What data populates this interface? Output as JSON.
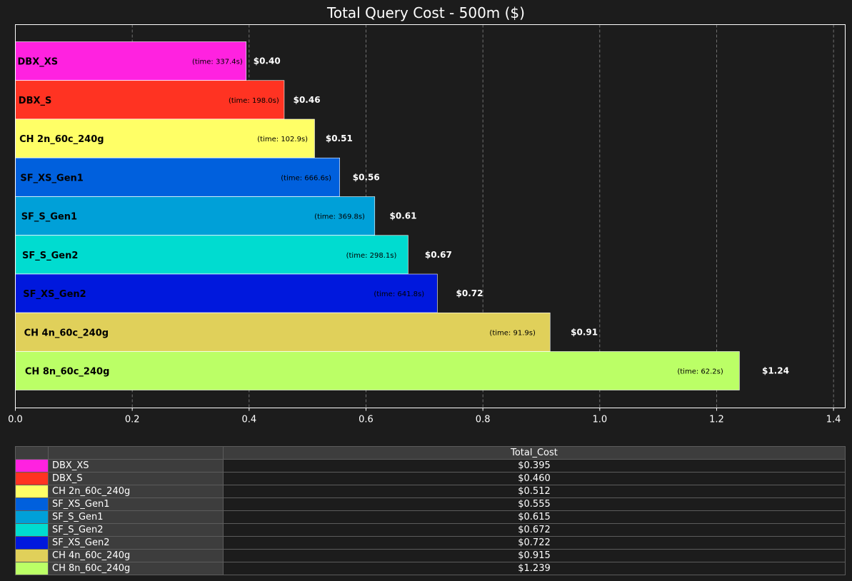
{
  "chart_data": {
    "type": "bar",
    "orientation": "horizontal",
    "title": "Total Query Cost - 500m ($)",
    "xlim": [
      0,
      1.42
    ],
    "x_ticks": [
      "0.0",
      "0.2",
      "0.4",
      "0.6",
      "0.8",
      "1.0",
      "1.2",
      "1.4"
    ],
    "grid": "vertical dashed",
    "categories": [
      "DBX_XS",
      "DBX_S",
      "CH 2n_60c_240g",
      "SF_XS_Gen1",
      "SF_S_Gen1",
      "SF_S_Gen2",
      "SF_XS_Gen2",
      "CH 4n_60c_240g",
      "CH 8n_60c_240g"
    ],
    "values": [
      0.395,
      0.46,
      0.512,
      0.555,
      0.615,
      0.672,
      0.722,
      0.915,
      1.239
    ],
    "value_labels": [
      "$0.40",
      "$0.46",
      "$0.51",
      "$0.56",
      "$0.61",
      "$0.67",
      "$0.72",
      "$0.91",
      "$1.24"
    ],
    "time_labels": [
      "(time: 337.4s)",
      "(time: 198.0s)",
      "(time: 102.9s)",
      "(time: 666.6s)",
      "(time: 369.8s)",
      "(time: 298.1s)",
      "(time: 641.8s)",
      "(time: 91.9s)",
      "(time: 62.2s)"
    ],
    "colors": [
      "#ff22e0",
      "#ff3322",
      "#ffff66",
      "#0060dd",
      "#00a0d8",
      "#00dcd0",
      "#0018dd",
      "#e0d05a",
      "#bbff66"
    ]
  },
  "table": {
    "header": "Total_Cost",
    "rows": [
      {
        "name": "DBX_XS",
        "value": "$0.395"
      },
      {
        "name": "DBX_S",
        "value": "$0.460"
      },
      {
        "name": "CH 2n_60c_240g",
        "value": "$0.512"
      },
      {
        "name": "SF_XS_Gen1",
        "value": "$0.555"
      },
      {
        "name": "SF_S_Gen1",
        "value": "$0.615"
      },
      {
        "name": "SF_S_Gen2",
        "value": "$0.672"
      },
      {
        "name": "SF_XS_Gen2",
        "value": "$0.722"
      },
      {
        "name": "CH 4n_60c_240g",
        "value": "$0.915"
      },
      {
        "name": "CH 8n_60c_240g",
        "value": "$1.239"
      }
    ]
  }
}
